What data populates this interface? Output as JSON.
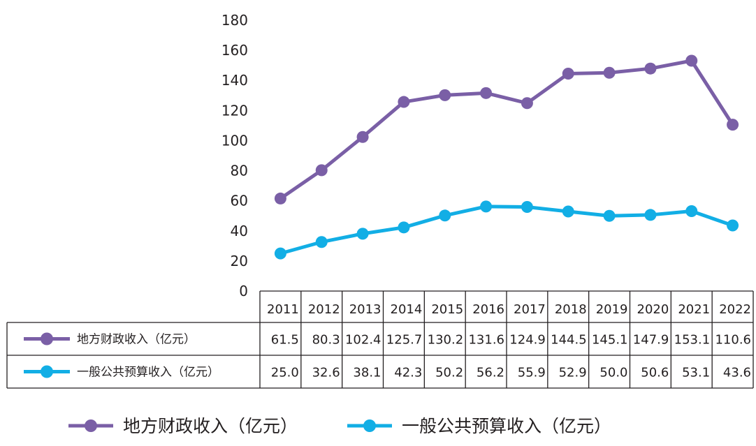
{
  "chart_data": {
    "type": "line",
    "title": "",
    "xlabel": "",
    "ylabel": "",
    "ylim": [
      0,
      180
    ],
    "yticks": [
      0,
      20,
      40,
      60,
      80,
      100,
      120,
      140,
      160,
      180
    ],
    "grid": false,
    "legend_position": "bottom",
    "has_data_table": true,
    "categories": [
      "2011",
      "2012",
      "2013",
      "2014",
      "2015",
      "2016",
      "2017",
      "2018",
      "2019",
      "2020",
      "2021",
      "2022"
    ],
    "series": [
      {
        "name": "地方财政收入（亿元）",
        "color": "#7a5fa6",
        "values": [
          61.5,
          80.3,
          102.4,
          125.7,
          130.2,
          131.6,
          124.9,
          144.5,
          145.1,
          147.9,
          153.1,
          110.6
        ],
        "labels": [
          "61.5",
          "80.3",
          "102.4",
          "125.7",
          "130.2",
          "131.6",
          "124.9",
          "144.5",
          "145.1",
          "147.9",
          "153.1",
          "110.6"
        ]
      },
      {
        "name": "一般公共预算收入（亿元）",
        "color": "#12aee5",
        "values": [
          25.0,
          32.6,
          38.1,
          42.3,
          50.2,
          56.2,
          55.9,
          52.9,
          50.0,
          50.6,
          53.1,
          43.6
        ],
        "labels": [
          "25.0",
          "32.6",
          "38.1",
          "42.3",
          "50.2",
          "56.2",
          "55.9",
          "52.9",
          "50.0",
          "50.6",
          "53.1",
          "43.6"
        ]
      }
    ]
  }
}
